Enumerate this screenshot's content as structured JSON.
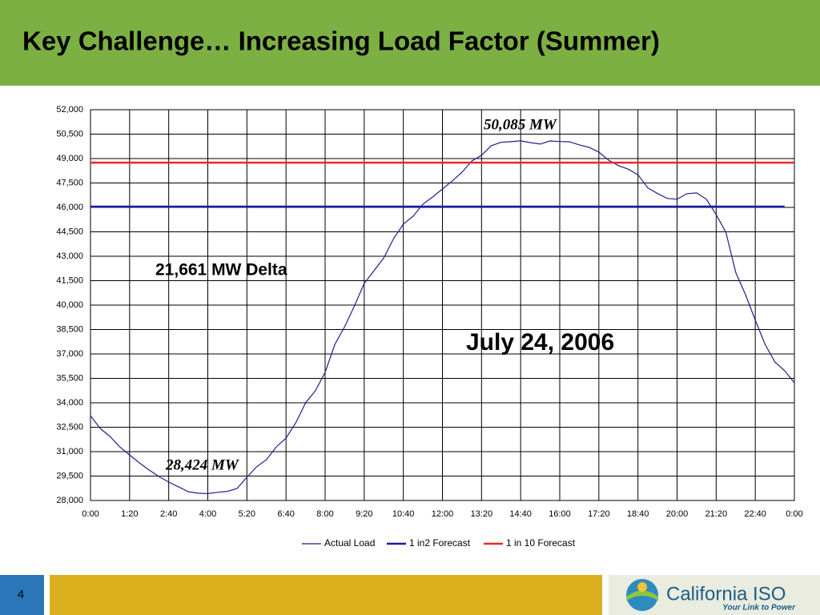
{
  "slide": {
    "title": "Key Challenge… Increasing Load Factor (Summer)",
    "page_number": "4",
    "logo_name": "California ISO",
    "logo_tagline": "Your Link to Power"
  },
  "chart_data": {
    "type": "line",
    "series": [
      {
        "name": "Actual Load",
        "color": "#1f1f8c",
        "x": [
          0,
          20,
          40,
          60,
          80,
          100,
          120,
          140,
          160,
          180,
          200,
          220,
          240,
          260,
          280,
          300,
          320,
          340,
          360,
          380,
          400,
          420,
          440,
          460,
          480,
          500,
          520,
          540,
          560,
          580,
          600,
          620,
          640,
          660,
          680,
          700,
          720,
          740,
          760,
          780,
          800,
          820,
          840,
          860,
          880,
          900,
          920,
          940,
          960,
          980,
          1000,
          1020,
          1040,
          1060,
          1080,
          1100,
          1120,
          1140,
          1160,
          1180,
          1200,
          1220,
          1240,
          1260,
          1280,
          1300,
          1320,
          1340,
          1360,
          1380,
          1400,
          1420,
          1440
        ],
        "values": [
          33210,
          32420,
          31930,
          31290,
          30800,
          30310,
          29870,
          29470,
          29130,
          28840,
          28540,
          28450,
          28424,
          28500,
          28560,
          28740,
          29430,
          30070,
          30510,
          31290,
          31830,
          32770,
          34000,
          34740,
          35870,
          37590,
          38670,
          39950,
          41330,
          42110,
          42900,
          44080,
          44970,
          45460,
          46200,
          46640,
          47130,
          47620,
          48160,
          48850,
          49200,
          49790,
          50000,
          50040,
          50085,
          49980,
          49890,
          50080,
          50050,
          50030,
          49840,
          49690,
          49400,
          48900,
          48560,
          48350,
          48000,
          47200,
          46850,
          46550,
          46500,
          46840,
          46890,
          46500,
          45560,
          44470,
          42000,
          40640,
          39070,
          37590,
          36510,
          35970,
          35230
        ]
      },
      {
        "name": "1 in2 Forecast",
        "color": "#1a1aa6",
        "x": [
          0,
          1420
        ],
        "values": [
          46050,
          46050
        ]
      },
      {
        "name": "1 in 10 Forecast",
        "color": "#e8282b",
        "x": [
          0,
          1440
        ],
        "values": [
          48750,
          48750
        ]
      }
    ],
    "xlim": [
      0,
      1440
    ],
    "xticks": [
      {
        "value": 0,
        "label": "0:00"
      },
      {
        "value": 80,
        "label": "1:20"
      },
      {
        "value": 160,
        "label": "2:40"
      },
      {
        "value": 240,
        "label": "4:00"
      },
      {
        "value": 320,
        "label": "5:20"
      },
      {
        "value": 400,
        "label": "6:40"
      },
      {
        "value": 480,
        "label": "8:00"
      },
      {
        "value": 560,
        "label": "9:20"
      },
      {
        "value": 640,
        "label": "10:40"
      },
      {
        "value": 720,
        "label": "12:00"
      },
      {
        "value": 800,
        "label": "13:20"
      },
      {
        "value": 880,
        "label": "14:40"
      },
      {
        "value": 960,
        "label": "16:00"
      },
      {
        "value": 1040,
        "label": "17:20"
      },
      {
        "value": 1120,
        "label": "18:40"
      },
      {
        "value": 1200,
        "label": "20:00"
      },
      {
        "value": 1280,
        "label": "21:20"
      },
      {
        "value": 1360,
        "label": "22:40"
      },
      {
        "value": 1440,
        "label": "0:00"
      }
    ],
    "ylim": [
      28000,
      52000
    ],
    "yticks": [
      {
        "value": 28000,
        "label": "28,000"
      },
      {
        "value": 29500,
        "label": "29,500"
      },
      {
        "value": 31000,
        "label": "31,000"
      },
      {
        "value": 32500,
        "label": "32,500"
      },
      {
        "value": 34000,
        "label": "34,000"
      },
      {
        "value": 35500,
        "label": "35,500"
      },
      {
        "value": 37000,
        "label": "37,000"
      },
      {
        "value": 38500,
        "label": "38,500"
      },
      {
        "value": 40000,
        "label": "40,000"
      },
      {
        "value": 41500,
        "label": "41,500"
      },
      {
        "value": 43000,
        "label": "43,000"
      },
      {
        "value": 44500,
        "label": "44,500"
      },
      {
        "value": 46000,
        "label": "46,000"
      },
      {
        "value": 47500,
        "label": "47,500"
      },
      {
        "value": 49000,
        "label": "49,000"
      },
      {
        "value": 50500,
        "label": "50,500"
      },
      {
        "value": 52000,
        "label": "52,000"
      }
    ],
    "grid": true,
    "legend": "bottom",
    "annotations": [
      "50,085 MW",
      "28,424 MW",
      "21,661 MW Delta",
      "July 24, 2006"
    ]
  }
}
